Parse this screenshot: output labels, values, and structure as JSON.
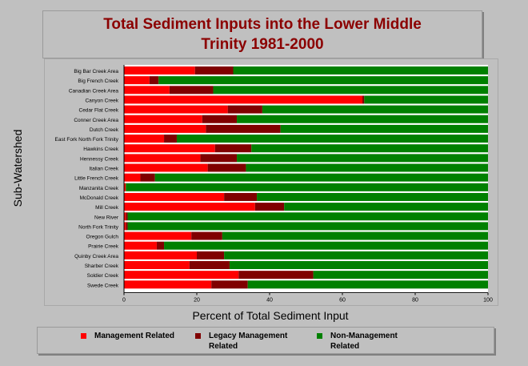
{
  "chart_data": {
    "type": "bar",
    "orientation": "horizontal",
    "stacked": true,
    "title": "Total Sediment Inputs into the Lower Middle Trinity 1981-2000",
    "xlabel": "Percent of Total Sediment Input",
    "ylabel": "Sub-Watershed",
    "xlim": [
      0,
      100
    ],
    "x_ticks": [
      "0",
      "20",
      "40",
      "60",
      "80",
      "100"
    ],
    "grid": false,
    "legend_position": "bottom",
    "categories": [
      "Big Bar Creek Area",
      "Big French Creek",
      "Canadian Creek Area",
      "Canyon Creek",
      "Cedar Flat Creek",
      "Conner Creek Area",
      "Dutch Creek",
      "East Fork North Fork Trinity",
      "Hawkins Creek",
      "Hennessy Creek",
      "Italian Creek",
      "Little French Creek",
      "Manzanita Creek",
      "McDonald Creek",
      "Mill Creek",
      "New River",
      "North Fork Trinity",
      "Oregon Gulch",
      "Prairie Creek",
      "Quinby Creek Area",
      "Sharber Creek",
      "Soldier Creek",
      "Swede Creek"
    ],
    "series": [
      {
        "name": "Management Related",
        "color": "#ff0000",
        "values": [
          19.5,
          7,
          12.5,
          65.5,
          28.5,
          21.5,
          22.5,
          11,
          25,
          21,
          23,
          4.5,
          0.5,
          27.5,
          36,
          0.5,
          0.5,
          18.5,
          9,
          20,
          18,
          31.5,
          24
        ]
      },
      {
        "name": "Legacy Management Related",
        "color": "#800000",
        "values": [
          10.5,
          2.5,
          12,
          0.5,
          9.5,
          9.5,
          20.5,
          3.5,
          10,
          10,
          10.5,
          4,
          0,
          9,
          8,
          0.5,
          0.5,
          8.5,
          2,
          7.5,
          11,
          20.5,
          10
        ]
      },
      {
        "name": "Non-Management Related",
        "color": "#008000",
        "values": [
          70,
          90.5,
          75.5,
          34,
          62,
          69,
          57,
          85.5,
          65,
          69,
          66.5,
          91.5,
          99.5,
          63.5,
          56,
          99,
          99,
          73,
          89,
          72.5,
          71,
          48,
          66
        ]
      }
    ]
  },
  "legend": {
    "items": [
      {
        "label_line1": "Management Related",
        "label_line2": "",
        "color": "#ff0000"
      },
      {
        "label_line1": "Legacy Management",
        "label_line2": "Related",
        "color": "#800000"
      },
      {
        "label_line1": "Non-Management",
        "label_line2": "Related",
        "color": "#008000"
      }
    ]
  }
}
